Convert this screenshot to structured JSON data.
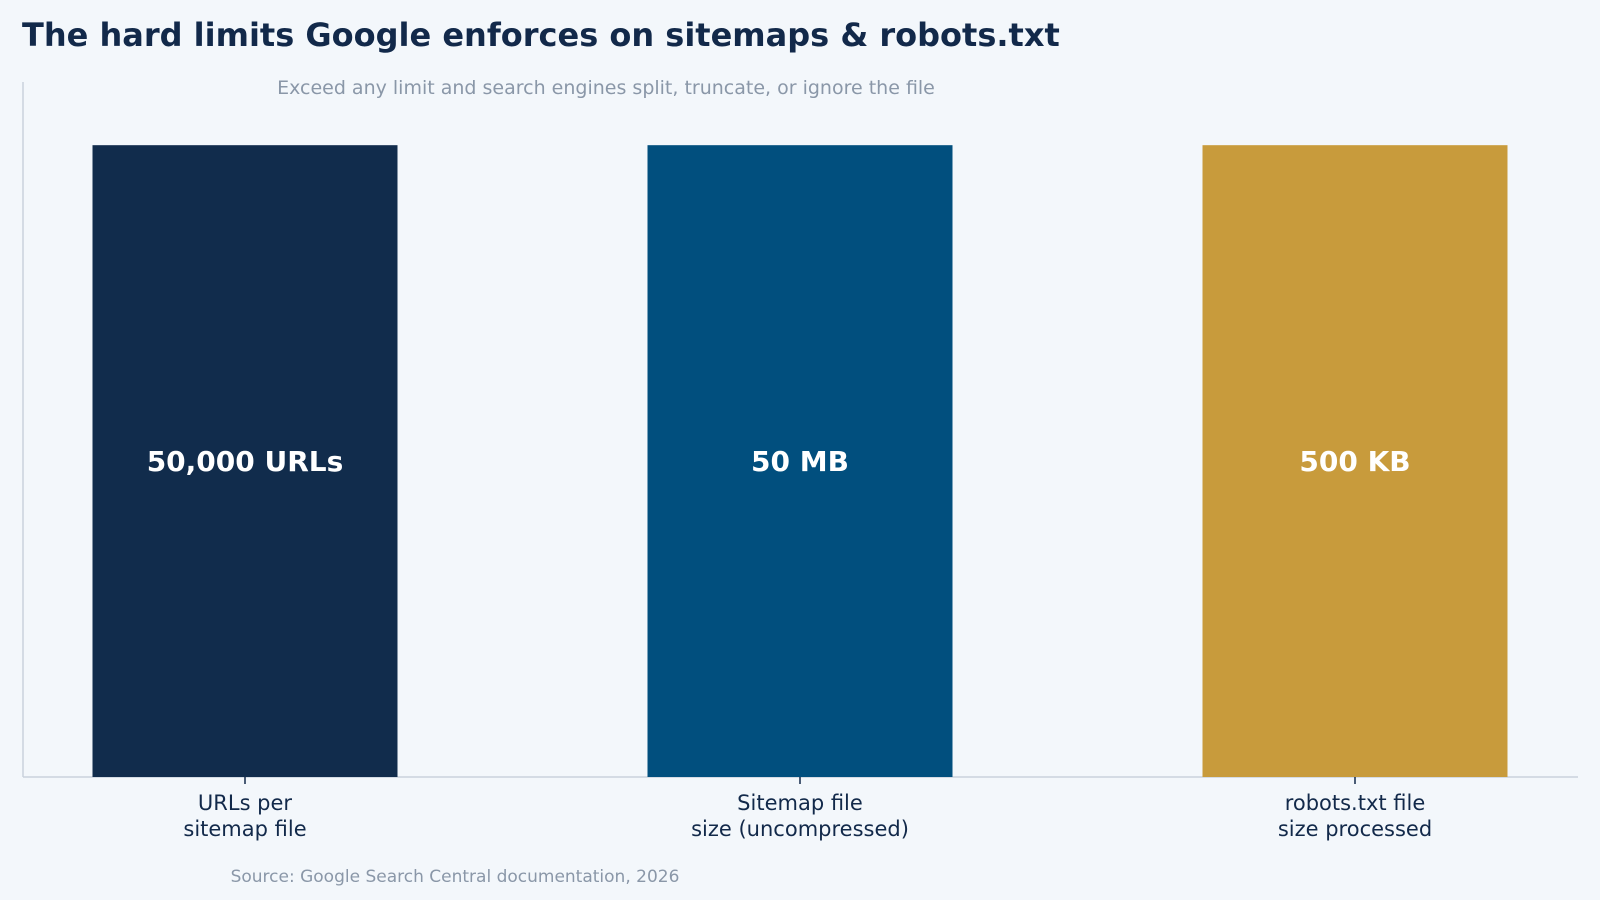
{
  "title": "The hard limits Google enforces on sitemaps & robots.txt",
  "subtitle": "Exceed any limit and search engines split, truncate, or ignore the file",
  "source": "Source: Google Search Central documentation, 2026",
  "chart_data": {
    "type": "bar",
    "categories": [
      [
        "URLs per",
        "sitemap file"
      ],
      [
        "Sitemap file",
        "size (uncompressed)"
      ],
      [
        "robots.txt file",
        "size processed"
      ]
    ],
    "values": [
      1,
      1,
      1
    ],
    "data_labels": [
      "50,000 URLs",
      "50 MB",
      "500 KB"
    ],
    "colors": [
      "#112c4c",
      "#014f7e",
      "#c89b3c"
    ],
    "ylim": [
      0,
      1.1
    ],
    "grid": false,
    "legend": "none"
  }
}
